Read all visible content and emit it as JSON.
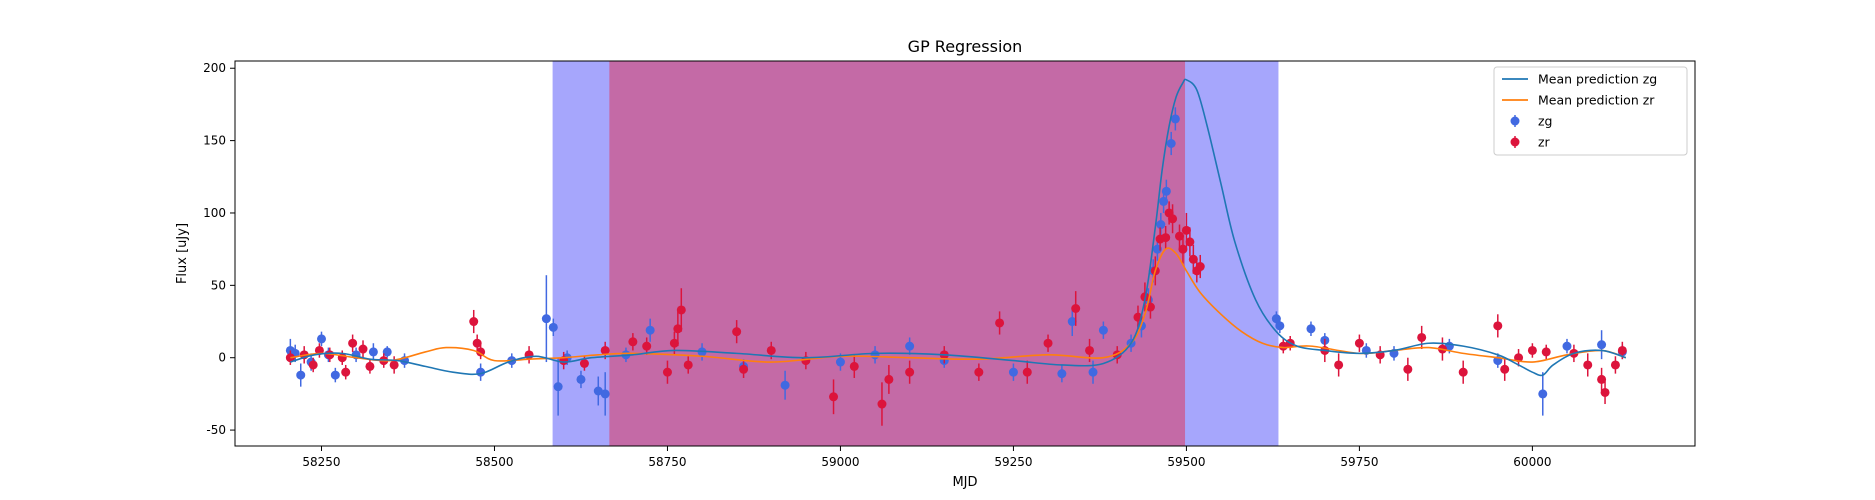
{
  "chart_data": {
    "type": "scatter",
    "title": "GP Regression",
    "xlabel": "MJD",
    "ylabel": "Flux [uJy]",
    "xlim": [
      58125,
      60235
    ],
    "ylim": [
      -61,
      205
    ],
    "xticks": [
      58250,
      58500,
      58750,
      59000,
      59250,
      59500,
      59750,
      60000
    ],
    "yticks": [
      -50,
      0,
      50,
      100,
      150,
      200
    ],
    "grid": false,
    "legend_position": "top-right",
    "colors": {
      "zg_line": "#1f77b4",
      "zr_line": "#ff7f0e",
      "zg_points": "#4169e1",
      "zr_points": "#dc143c",
      "span_blue": "#a6a6fc",
      "span_magenta": "#c46aa6"
    },
    "shaded_regions": [
      {
        "x": [
          58584,
          59633
        ],
        "color": "#a6a6fc"
      },
      {
        "x": [
          58666,
          59498
        ],
        "color": "#c46aa6"
      }
    ],
    "legend": [
      {
        "label": "Mean prediction zg",
        "kind": "line",
        "color": "#1f77b4"
      },
      {
        "label": "Mean prediction zr",
        "kind": "line",
        "color": "#ff7f0e"
      },
      {
        "label": "zg",
        "kind": "errorbar",
        "color": "#4169e1"
      },
      {
        "label": "zr",
        "kind": "errorbar",
        "color": "#dc143c"
      }
    ],
    "series": [
      {
        "name": "Mean prediction zg",
        "kind": "line",
        "color": "#1f77b4",
        "x": [
          58205,
          58240,
          58280,
          58320,
          58360,
          58400,
          58440,
          58480,
          58520,
          58560,
          58600,
          58640,
          58700,
          58760,
          58850,
          58950,
          59050,
          59150,
          59250,
          59320,
          59380,
          59420,
          59440,
          59455,
          59465,
          59475,
          59485,
          59495,
          59500,
          59515,
          59530,
          59550,
          59570,
          59600,
          59630,
          59660,
          59700,
          59750,
          59800,
          59850,
          59900,
          59950,
          59980,
          60000,
          60015,
          60030,
          60060,
          60100,
          60135
        ],
        "y": [
          -3,
          2,
          3,
          -1,
          -2,
          -6,
          -10,
          -11,
          -3,
          1,
          -3,
          0,
          2,
          5,
          3,
          0,
          3,
          2,
          -2,
          -5,
          -4,
          10,
          40,
          90,
          130,
          160,
          180,
          190,
          192,
          185,
          160,
          120,
          80,
          40,
          18,
          8,
          5,
          3,
          5,
          10,
          8,
          2,
          -5,
          -10,
          -12,
          -5,
          3,
          5,
          0
        ]
      },
      {
        "name": "Mean prediction zr",
        "kind": "line",
        "color": "#ff7f0e",
        "x": [
          58205,
          58250,
          58300,
          58350,
          58400,
          58430,
          58470,
          58500,
          58550,
          58600,
          58650,
          58700,
          58800,
          58900,
          59000,
          59100,
          59200,
          59300,
          59380,
          59420,
          59440,
          59455,
          59470,
          59485,
          59500,
          59520,
          59550,
          59580,
          59610,
          59640,
          59680,
          59750,
          59800,
          59850,
          59900,
          59950,
          60000,
          60050,
          60100,
          60135
        ],
        "y": [
          0,
          3,
          0,
          -2,
          4,
          7,
          5,
          -2,
          -1,
          0,
          2,
          3,
          1,
          -3,
          1,
          0,
          -1,
          2,
          0,
          10,
          30,
          60,
          75,
          72,
          60,
          45,
          30,
          18,
          10,
          7,
          8,
          3,
          5,
          7,
          3,
          0,
          -3,
          2,
          5,
          0
        ]
      },
      {
        "name": "zg",
        "kind": "errorbar",
        "color": "#4169e1",
        "points": [
          [
            58205,
            5,
            8
          ],
          [
            58212,
            3,
            6
          ],
          [
            58220,
            -12,
            8
          ],
          [
            58235,
            -3,
            6
          ],
          [
            58250,
            13,
            5
          ],
          [
            58260,
            2,
            5
          ],
          [
            58270,
            -12,
            5
          ],
          [
            58300,
            2,
            5
          ],
          [
            58325,
            4,
            6
          ],
          [
            58345,
            4,
            4
          ],
          [
            58370,
            -2,
            5
          ],
          [
            58480,
            -10,
            6
          ],
          [
            58525,
            -2,
            5
          ],
          [
            58575,
            27,
            30
          ],
          [
            58585,
            21,
            6
          ],
          [
            58592,
            -20,
            20
          ],
          [
            58605,
            0,
            5
          ],
          [
            58625,
            -15,
            6
          ],
          [
            58650,
            -23,
            10
          ],
          [
            58660,
            -25,
            15
          ],
          [
            58690,
            2,
            5
          ],
          [
            58725,
            19,
            8
          ],
          [
            58800,
            4,
            6
          ],
          [
            58860,
            -6,
            5
          ],
          [
            58920,
            -19,
            10
          ],
          [
            59000,
            -3,
            6
          ],
          [
            59050,
            2,
            6
          ],
          [
            59100,
            8,
            6
          ],
          [
            59150,
            -2,
            5
          ],
          [
            59250,
            -10,
            6
          ],
          [
            59320,
            -11,
            6
          ],
          [
            59335,
            25,
            10
          ],
          [
            59365,
            -10,
            8
          ],
          [
            59380,
            19,
            6
          ],
          [
            59420,
            10,
            6
          ],
          [
            59435,
            22,
            8
          ],
          [
            59445,
            40,
            8
          ],
          [
            59452,
            60,
            8
          ],
          [
            59458,
            75,
            8
          ],
          [
            59463,
            92,
            8
          ],
          [
            59467,
            108,
            8
          ],
          [
            59471,
            115,
            8
          ],
          [
            59478,
            148,
            8
          ],
          [
            59484,
            165,
            8
          ],
          [
            59630,
            27,
            5
          ],
          [
            59635,
            22,
            5
          ],
          [
            59680,
            20,
            5
          ],
          [
            59700,
            12,
            5
          ],
          [
            59760,
            5,
            5
          ],
          [
            59800,
            3,
            5
          ],
          [
            59880,
            8,
            5
          ],
          [
            59950,
            -2,
            5
          ],
          [
            60015,
            -25,
            15
          ],
          [
            60050,
            8,
            5
          ],
          [
            60100,
            9,
            10
          ],
          [
            60130,
            4,
            5
          ]
        ]
      },
      {
        "name": "zr",
        "kind": "errorbar",
        "color": "#dc143c",
        "points": [
          [
            58205,
            0,
            5
          ],
          [
            58225,
            2,
            6
          ],
          [
            58238,
            -5,
            5
          ],
          [
            58247,
            5,
            5
          ],
          [
            58262,
            2,
            5
          ],
          [
            58280,
            0,
            5
          ],
          [
            58285,
            -10,
            5
          ],
          [
            58295,
            10,
            6
          ],
          [
            58310,
            6,
            6
          ],
          [
            58320,
            -6,
            5
          ],
          [
            58340,
            -2,
            5
          ],
          [
            58355,
            -5,
            6
          ],
          [
            58470,
            25,
            8
          ],
          [
            58475,
            10,
            6
          ],
          [
            58480,
            4,
            5
          ],
          [
            58550,
            2,
            6
          ],
          [
            58600,
            -2,
            6
          ],
          [
            58630,
            -4,
            5
          ],
          [
            58660,
            5,
            6
          ],
          [
            58700,
            11,
            6
          ],
          [
            58720,
            8,
            6
          ],
          [
            58750,
            -10,
            8
          ],
          [
            58760,
            10,
            8
          ],
          [
            58765,
            20,
            12
          ],
          [
            58770,
            33,
            15
          ],
          [
            58780,
            -5,
            6
          ],
          [
            58850,
            18,
            8
          ],
          [
            58860,
            -8,
            6
          ],
          [
            58900,
            5,
            6
          ],
          [
            58950,
            -2,
            6
          ],
          [
            58990,
            -27,
            12
          ],
          [
            59020,
            -6,
            8
          ],
          [
            59060,
            -32,
            15
          ],
          [
            59070,
            -15,
            10
          ],
          [
            59100,
            -10,
            8
          ],
          [
            59150,
            2,
            6
          ],
          [
            59200,
            -10,
            6
          ],
          [
            59230,
            24,
            8
          ],
          [
            59270,
            -10,
            8
          ],
          [
            59300,
            10,
            6
          ],
          [
            59340,
            34,
            12
          ],
          [
            59360,
            5,
            8
          ],
          [
            59400,
            2,
            6
          ],
          [
            59430,
            28,
            8
          ],
          [
            59440,
            42,
            10
          ],
          [
            59448,
            35,
            8
          ],
          [
            59455,
            60,
            10
          ],
          [
            59462,
            82,
            8
          ],
          [
            59470,
            83,
            8
          ],
          [
            59475,
            100,
            8
          ],
          [
            59480,
            96,
            10
          ],
          [
            59490,
            84,
            8
          ],
          [
            59495,
            75,
            10
          ],
          [
            59500,
            88,
            12
          ],
          [
            59505,
            80,
            10
          ],
          [
            59510,
            68,
            10
          ],
          [
            59515,
            60,
            8
          ],
          [
            59520,
            63,
            8
          ],
          [
            59640,
            8,
            5
          ],
          [
            59650,
            10,
            5
          ],
          [
            59700,
            5,
            8
          ],
          [
            59720,
            -5,
            8
          ],
          [
            59750,
            10,
            6
          ],
          [
            59780,
            2,
            6
          ],
          [
            59820,
            -8,
            8
          ],
          [
            59840,
            14,
            8
          ],
          [
            59870,
            6,
            8
          ],
          [
            59900,
            -10,
            8
          ],
          [
            59950,
            22,
            8
          ],
          [
            59960,
            -8,
            8
          ],
          [
            59980,
            0,
            6
          ],
          [
            60000,
            5,
            5
          ],
          [
            60020,
            4,
            5
          ],
          [
            60060,
            3,
            6
          ],
          [
            60080,
            -5,
            8
          ],
          [
            60100,
            -15,
            8
          ],
          [
            60105,
            -24,
            8
          ],
          [
            60120,
            -5,
            6
          ],
          [
            60130,
            5,
            6
          ]
        ]
      }
    ]
  }
}
